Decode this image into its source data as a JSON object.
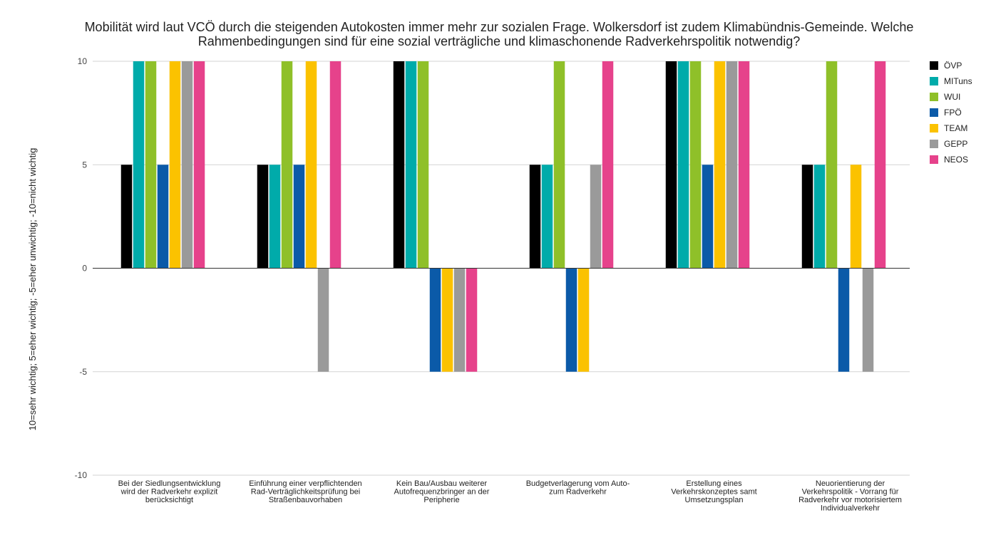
{
  "chart_data": {
    "type": "bar",
    "title_lines": [
      "Mobilität wird laut VCÖ durch die steigenden Autokosten immer mehr zur sozialen Frage. Wolkersdorf ist zudem Klimabündnis-Gemeinde. Welche",
      "Rahmenbedingungen sind für eine sozial verträgliche und klimaschonende Radverkehrspolitik notwendig?"
    ],
    "ylabel": "10=sehr wichtig; 5=eher wichtig; -5=eher unwichtig; -10=nicht wichtig",
    "xlabel": "",
    "ylim": [
      -10,
      10
    ],
    "yticks": [
      10,
      5,
      0,
      -5,
      -10
    ],
    "grid": true,
    "legend_position": "right",
    "categories": [
      [
        "Bei der Siedlungsentwicklung",
        "wird der Radverkehr explizit",
        "berücksichtigt"
      ],
      [
        "Einführung einer verpflichtenden",
        "Rad-Verträglichkeitsprüfung bei",
        "Straßenbauvorhaben"
      ],
      [
        "Kein Bau/Ausbau weiterer",
        "Autofrequenzbringer an der",
        "Peripherie"
      ],
      [
        "Budgetverlagerung vom Auto-",
        "zum Radverkehr"
      ],
      [
        "Erstellung eines",
        "Verkehrskonzeptes samt",
        "Umsetzungsplan"
      ],
      [
        "Neuorientierung der",
        "Verkehrspolitik - Vorrang für",
        "Radverkehr vor motorisiertem",
        "Individualverkehr"
      ]
    ],
    "series": [
      {
        "name": "ÖVP",
        "color": "#000000",
        "values": [
          5,
          5,
          10,
          5,
          10,
          5
        ]
      },
      {
        "name": "MITuns",
        "color": "#00abaa",
        "values": [
          10,
          5,
          10,
          5,
          10,
          5
        ]
      },
      {
        "name": "WUI",
        "color": "#8fc029",
        "values": [
          10,
          10,
          10,
          10,
          10,
          10
        ]
      },
      {
        "name": "FPÖ",
        "color": "#0b5aa8",
        "values": [
          5,
          5,
          -5,
          -5,
          5,
          -5
        ]
      },
      {
        "name": "TEAM",
        "color": "#fbc200",
        "values": [
          10,
          10,
          -5,
          -5,
          10,
          5
        ]
      },
      {
        "name": "GEPP",
        "color": "#9a9a9a",
        "values": [
          10,
          -5,
          -5,
          5,
          10,
          -5
        ]
      },
      {
        "name": "NEOS",
        "color": "#e6428b",
        "values": [
          10,
          10,
          -5,
          10,
          10,
          10
        ]
      }
    ]
  }
}
